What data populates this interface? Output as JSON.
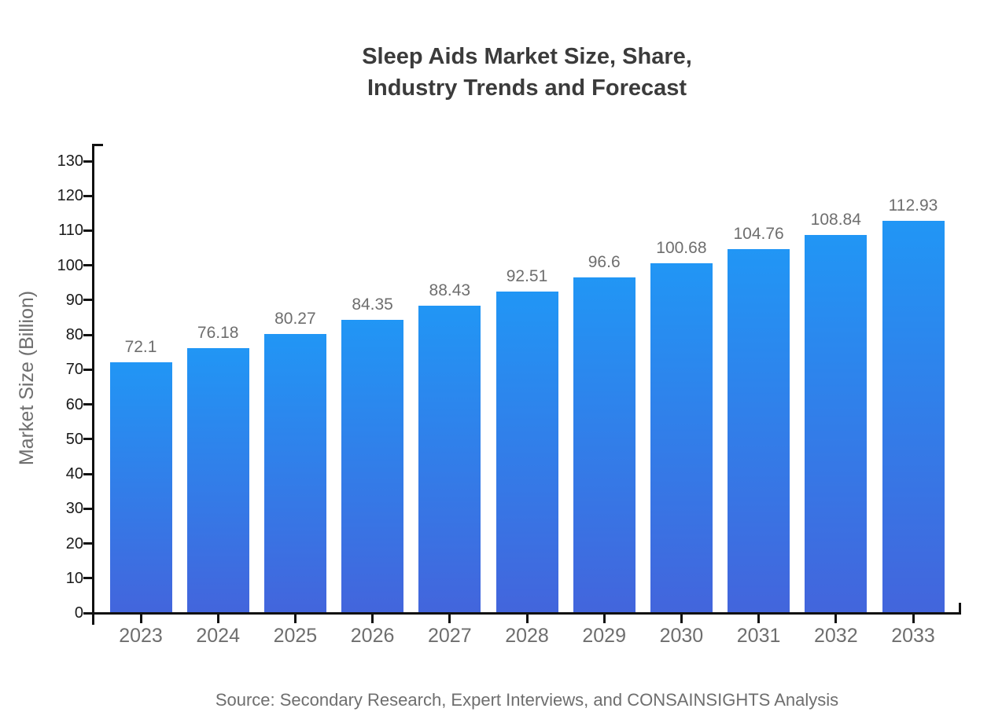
{
  "title": "Sleep Aids Market Size, Share,\nIndustry Trends and Forecast",
  "source": "Source: Secondary Research, Expert Interviews, and CONSAINSIGHTS Analysis",
  "chart_data": {
    "type": "bar",
    "title": "Sleep Aids Market Size, Share, Industry Trends and Forecast",
    "categories": [
      "2023",
      "2024",
      "2025",
      "2026",
      "2027",
      "2028",
      "2029",
      "2030",
      "2031",
      "2032",
      "2033"
    ],
    "values": [
      72.1,
      76.18,
      80.27,
      84.35,
      88.43,
      92.51,
      96.6,
      100.68,
      104.76,
      108.84,
      112.93
    ],
    "value_labels": [
      "72.1",
      "76.18",
      "80.27",
      "84.35",
      "88.43",
      "92.51",
      "96.6",
      "100.68",
      "104.76",
      "108.84",
      "112.93"
    ],
    "xlabel": "",
    "ylabel": "Market Size (Billion)",
    "ylim": [
      0,
      130
    ],
    "yticks": [
      0,
      10,
      20,
      30,
      40,
      50,
      60,
      70,
      80,
      90,
      100,
      110,
      120,
      130
    ],
    "grid": false,
    "legend": "none",
    "bar_color_top": "#2196f5",
    "bar_color_bottom": "#4365dc",
    "axis_color": "#111111",
    "title_color": "#3b3b3b",
    "label_color": "#6e6e6e",
    "ytick_label_color": "#1a1a1a"
  }
}
